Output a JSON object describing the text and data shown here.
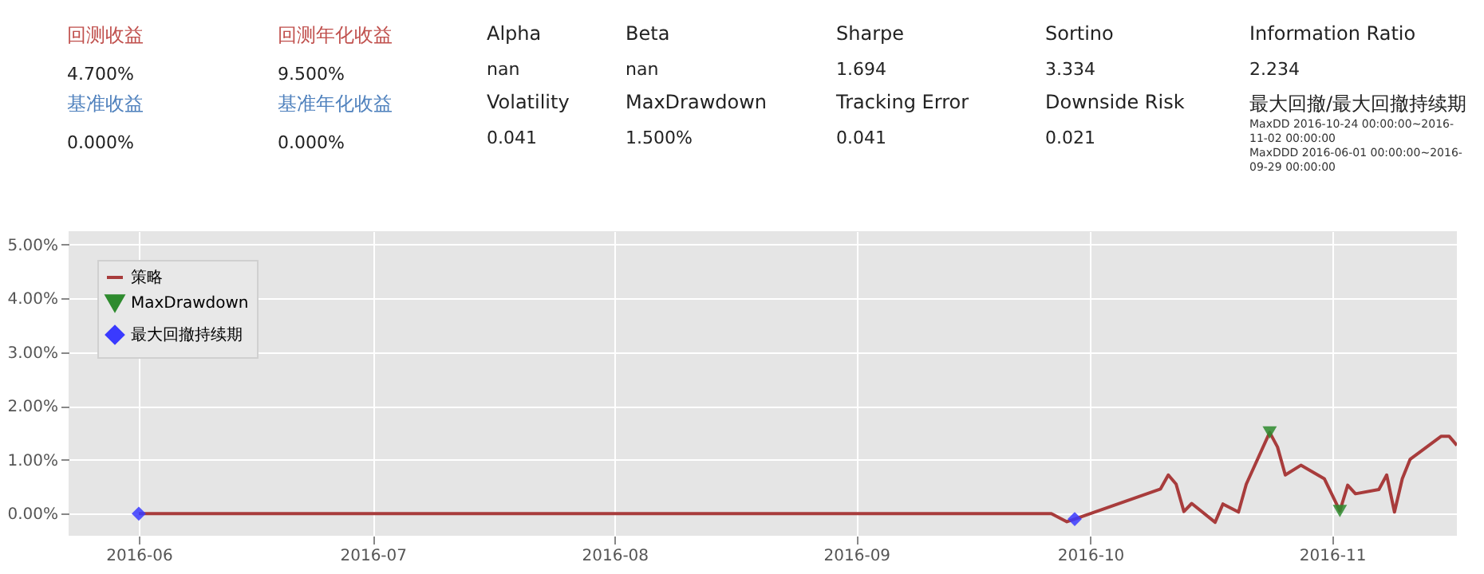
{
  "chart_data": [
    {
      "type": "other",
      "categories": [
        "回测收益",
        "回测年化收益",
        "Alpha",
        "Beta",
        "Sharpe",
        "Sortino",
        "Information Ratio",
        "基准收益",
        "基准年化收益",
        "Volatility",
        "MaxDrawdown",
        "Tracking Error",
        "Downside Risk",
        "最大回撤/最大回撤持续期"
      ],
      "value_labels": [
        "4.700%",
        "9.500%",
        "nan",
        "nan",
        "1.694",
        "3.334",
        "2.234",
        "0.000%",
        "0.000%",
        "0.041",
        "1.500%",
        "0.041",
        "0.021",
        null
      ],
      "colors": [
        "#c0504d",
        "#c0504d",
        "#222222",
        "#222222",
        "#222222",
        "#222222",
        "#222222",
        "#4f81bd",
        "#4f81bd",
        "#222222",
        "#222222",
        "#222222",
        "#222222",
        "#222222"
      ],
      "annotations": [
        "MaxDD  2016-10-24 00:00:00~2016-11-02 00:00:00",
        "MaxDDD 2016-06-01 00:00:00~2016-09-29 00:00:00"
      ]
    },
    {
      "type": "line",
      "x": [
        "2016-06-01",
        "2016-09-26",
        "2016-09-28",
        "2016-09-29",
        "2016-10-10",
        "2016-10-11",
        "2016-10-12",
        "2016-10-13",
        "2016-10-14",
        "2016-10-17",
        "2016-10-18",
        "2016-10-20",
        "2016-10-21",
        "2016-10-24",
        "2016-10-25",
        "2016-10-26",
        "2016-10-28",
        "2016-10-31",
        "2016-11-02",
        "2016-11-03",
        "2016-11-04",
        "2016-11-07",
        "2016-11-08",
        "2016-11-09",
        "2016-11-10",
        "2016-11-11",
        "2016-11-15",
        "2016-11-16",
        "2016-11-17"
      ],
      "series": [
        {
          "name": "策略",
          "color": "#a83c3c",
          "type": "line",
          "marker": "none",
          "values": [
            0,
            0,
            -0.15,
            -0.1,
            0.46,
            0.72,
            0.55,
            0.04,
            0.19,
            -0.16,
            0.18,
            0.03,
            0.55,
            1.51,
            1.24,
            0.72,
            0.9,
            0.65,
            0.05,
            0.53,
            0.37,
            0.45,
            0.72,
            0.03,
            0.65,
            1.01,
            1.44,
            1.44,
            1.27
          ]
        },
        {
          "name": "MaxDrawdown",
          "color": "#2e8b2e",
          "type": "scatter",
          "marker": "triangle",
          "x": [
            "2016-10-24",
            "2016-11-02"
          ],
          "values": [
            1.51,
            0.05
          ]
        },
        {
          "name": "最大回撤持续期",
          "color": "#3a3aff",
          "type": "scatter",
          "marker": "diamond",
          "x": [
            "2016-06-01",
            "2016-09-29"
          ],
          "values": [
            0,
            -0.1
          ]
        }
      ],
      "xlim": [
        "2016-05-23",
        "2016-11-17"
      ],
      "xticks": [
        "2016-06",
        "2016-07",
        "2016-08",
        "2016-09",
        "2016-10",
        "2016-11"
      ],
      "ylim": [
        -0.41,
        5.25
      ],
      "yticks": [
        {
          "value": 0,
          "label": "0.00%"
        },
        {
          "value": 1,
          "label": "1.00%"
        },
        {
          "value": 2,
          "label": "2.00%"
        },
        {
          "value": 3,
          "label": "3.00%"
        },
        {
          "value": 4,
          "label": "4.00%"
        },
        {
          "value": 5,
          "label": "5.00%"
        }
      ],
      "grid": true,
      "legend": "top left"
    }
  ]
}
